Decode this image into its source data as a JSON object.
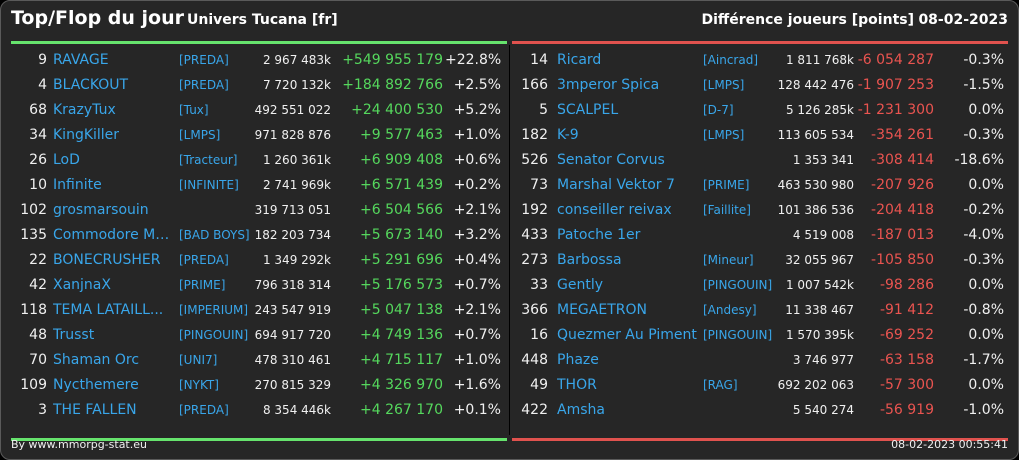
{
  "header": {
    "title": "Top/Flop du jour",
    "universe": "Univers Tucana [fr]",
    "metric": "Différence joueurs [points]",
    "date": "08-02-2023"
  },
  "colors": {
    "accent_top": "#66e36d",
    "accent_flop": "#e0524e",
    "link": "#39a6ea"
  },
  "top": [
    {
      "rank": "9",
      "name": "RAVAGE",
      "guild": "[PREDA]",
      "score": "2 967 483k",
      "diff": "+549 955 179",
      "pct": "+22.8%"
    },
    {
      "rank": "4",
      "name": "BLACKOUT",
      "guild": "[PREDA]",
      "score": "7 720 132k",
      "diff": "+184 892 766",
      "pct": "+2.5%"
    },
    {
      "rank": "68",
      "name": "KrazyTux",
      "guild": "[Tux]",
      "score": "492 551 022",
      "diff": "+24 400 530",
      "pct": "+5.2%"
    },
    {
      "rank": "34",
      "name": "KingKiller",
      "guild": "[LMPS]",
      "score": "971 828 876",
      "diff": "+9 577 463",
      "pct": "+1.0%"
    },
    {
      "rank": "26",
      "name": "LoD",
      "guild": "[Tracteur]",
      "score": "1 260 361k",
      "diff": "+6 909 408",
      "pct": "+0.6%"
    },
    {
      "rank": "10",
      "name": "Infinite",
      "guild": "[INFINITE]",
      "score": "2 741 969k",
      "diff": "+6 571 439",
      "pct": "+0.2%"
    },
    {
      "rank": "102",
      "name": "grosmarsouin",
      "guild": "",
      "score": "319 713 051",
      "diff": "+6 504 566",
      "pct": "+2.1%"
    },
    {
      "rank": "135",
      "name": "Commodore Me...",
      "guild": "[BAD BOYS]",
      "score": "182 203 734",
      "diff": "+5 673 140",
      "pct": "+3.2%"
    },
    {
      "rank": "22",
      "name": "BONECRUSHER",
      "guild": "[PREDA]",
      "score": "1 349 292k",
      "diff": "+5 291 696",
      "pct": "+0.4%"
    },
    {
      "rank": "42",
      "name": "XanjnaX",
      "guild": "[PRIME]",
      "score": "796 318 314",
      "diff": "+5 176 573",
      "pct": "+0.7%"
    },
    {
      "rank": "118",
      "name": "TEMA LATAILL...",
      "guild": "[IMPERIUM]",
      "score": "243 547 919",
      "diff": "+5 047 138",
      "pct": "+2.1%"
    },
    {
      "rank": "48",
      "name": "Trusst",
      "guild": "[PINGOUIN]",
      "score": "694 917 720",
      "diff": "+4 749 136",
      "pct": "+0.7%"
    },
    {
      "rank": "70",
      "name": "Shaman Orc",
      "guild": "[UNI7]",
      "score": "478 310 461",
      "diff": "+4 715 117",
      "pct": "+1.0%"
    },
    {
      "rank": "109",
      "name": "Nycthemere",
      "guild": "[NYKT]",
      "score": "270 815 329",
      "diff": "+4 326 970",
      "pct": "+1.6%"
    },
    {
      "rank": "3",
      "name": "THE FALLEN",
      "guild": "[PREDA]",
      "score": "8 354 446k",
      "diff": "+4 267 170",
      "pct": "+0.1%"
    }
  ],
  "flop": [
    {
      "rank": "14",
      "name": "Ricard",
      "guild": "[Aincrad]",
      "score": "1 811 768k",
      "diff": "-6 054 287",
      "pct": "-0.3%"
    },
    {
      "rank": "166",
      "name": "3mperor Spica",
      "guild": "[LMPS]",
      "score": "128 442 476",
      "diff": "-1 907 253",
      "pct": "-1.5%"
    },
    {
      "rank": "5",
      "name": "SCALPEL",
      "guild": "[D-7]",
      "score": "5 126 285k",
      "diff": "-1 231 300",
      "pct": "0.0%"
    },
    {
      "rank": "182",
      "name": "K-9",
      "guild": "[LMPS]",
      "score": "113 605 534",
      "diff": "-354 261",
      "pct": "-0.3%"
    },
    {
      "rank": "526",
      "name": "Senator Corvus",
      "guild": "",
      "score": "1 353 341",
      "diff": "-308 414",
      "pct": "-18.6%"
    },
    {
      "rank": "73",
      "name": "Marshal Vektor 7",
      "guild": "[PRIME]",
      "score": "463 530 980",
      "diff": "-207 926",
      "pct": "0.0%"
    },
    {
      "rank": "192",
      "name": "conseiller reivax",
      "guild": "[Faillite]",
      "score": "101 386 536",
      "diff": "-204 418",
      "pct": "-0.2%"
    },
    {
      "rank": "433",
      "name": "Patoche 1er",
      "guild": "",
      "score": "4 519 008",
      "diff": "-187 013",
      "pct": "-4.0%"
    },
    {
      "rank": "273",
      "name": "Barbossa",
      "guild": "[Mineur]",
      "score": "32 055 967",
      "diff": "-105 850",
      "pct": "-0.3%"
    },
    {
      "rank": "33",
      "name": "Gently",
      "guild": "[PINGOUIN]",
      "score": "1 007 542k",
      "diff": "-98 286",
      "pct": "0.0%"
    },
    {
      "rank": "366",
      "name": "MEGAETRON",
      "guild": "[Andesy]",
      "score": "11 338 467",
      "diff": "-91 412",
      "pct": "-0.8%"
    },
    {
      "rank": "16",
      "name": "Quezmer Au Piment",
      "guild": "[PINGOUIN]",
      "score": "1 570 395k",
      "diff": "-69 252",
      "pct": "0.0%"
    },
    {
      "rank": "448",
      "name": "Phaze",
      "guild": "",
      "score": "3 746 977",
      "diff": "-63 158",
      "pct": "-1.7%"
    },
    {
      "rank": "49",
      "name": "THOR",
      "guild": "[RAG]",
      "score": "692 202 063",
      "diff": "-57 300",
      "pct": "0.0%"
    },
    {
      "rank": "422",
      "name": "Amsha",
      "guild": "",
      "score": "5 540 274",
      "diff": "-56 919",
      "pct": "-1.0%"
    }
  ],
  "footer": {
    "credit": "By www.mmorpg-stat.eu",
    "timestamp": "08-02-2023 00:55:41"
  }
}
